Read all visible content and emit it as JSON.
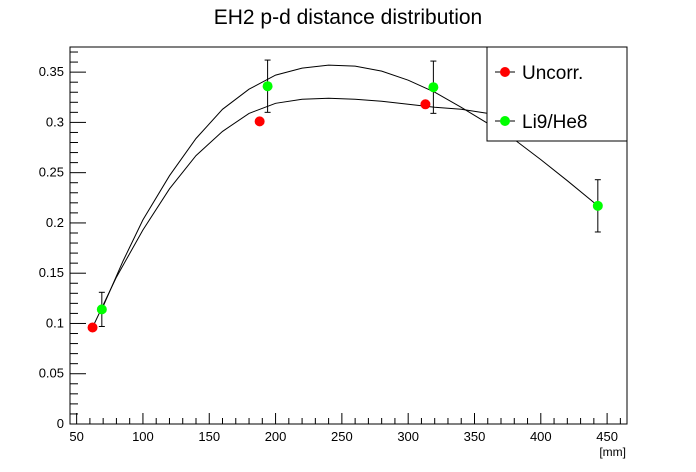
{
  "chart_data": {
    "type": "scatter",
    "title": "EH2 p-d distance distribution",
    "xlabel": "[mm]",
    "ylabel": "",
    "xlim": [
      45,
      465
    ],
    "ylim": [
      0,
      0.375
    ],
    "x_ticks": [
      50,
      100,
      150,
      200,
      250,
      300,
      350,
      400,
      450
    ],
    "x_tick_labels": [
      "50",
      "100",
      "150",
      "200",
      "250",
      "300",
      "350",
      "400",
      "450"
    ],
    "y_ticks": [
      0,
      0.05,
      0.1,
      0.15,
      0.2,
      0.25,
      0.3,
      0.35
    ],
    "y_tick_labels": [
      "0",
      "0.05",
      "0.1",
      "0.15",
      "0.2",
      "0.25",
      "0.3",
      "0.35"
    ],
    "grid": false,
    "legend_position": "top-right",
    "series": [
      {
        "name": "Uncorr.",
        "color": "#ff0000",
        "x": [
          62,
          188,
          313
        ],
        "y": [
          0.096,
          0.301,
          0.318
        ],
        "yerr": [
          0,
          0,
          0
        ],
        "fit_curve": [
          [
            62,
            0.096
          ],
          [
            80,
            0.146
          ],
          [
            100,
            0.193
          ],
          [
            120,
            0.234
          ],
          [
            140,
            0.267
          ],
          [
            160,
            0.291
          ],
          [
            180,
            0.309
          ],
          [
            200,
            0.319
          ],
          [
            220,
            0.323
          ],
          [
            240,
            0.324
          ],
          [
            260,
            0.323
          ],
          [
            280,
            0.321
          ],
          [
            300,
            0.318
          ],
          [
            320,
            0.315
          ],
          [
            340,
            0.313
          ],
          [
            360,
            0.309
          ]
        ]
      },
      {
        "name": "Li9/He8",
        "color": "#00ff00",
        "x": [
          69,
          194,
          319,
          443
        ],
        "y": [
          0.114,
          0.336,
          0.335,
          0.217
        ],
        "yerr": [
          0.017,
          0.026,
          0.026,
          0.026
        ],
        "fit_curve": [
          [
            69,
            0.114
          ],
          [
            85,
            0.162
          ],
          [
            100,
            0.203
          ],
          [
            120,
            0.247
          ],
          [
            140,
            0.284
          ],
          [
            160,
            0.313
          ],
          [
            180,
            0.333
          ],
          [
            200,
            0.347
          ],
          [
            220,
            0.354
          ],
          [
            240,
            0.357
          ],
          [
            260,
            0.356
          ],
          [
            280,
            0.351
          ],
          [
            300,
            0.342
          ],
          [
            320,
            0.33
          ],
          [
            340,
            0.315
          ],
          [
            360,
            0.299
          ],
          [
            380,
            0.283
          ],
          [
            400,
            0.263
          ],
          [
            420,
            0.242
          ],
          [
            443,
            0.217
          ]
        ]
      }
    ]
  }
}
